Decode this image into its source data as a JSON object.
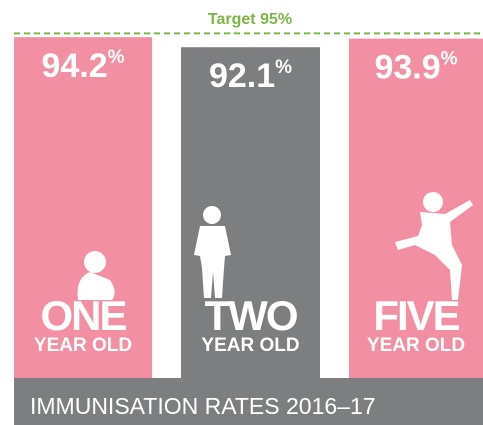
{
  "chart_data": {
    "type": "bar",
    "title": "IMMUNISATION RATES 2016–17",
    "categories": [
      "ONE",
      "TWO",
      "FIVE"
    ],
    "category_subtitles": [
      "YEAR OLD",
      "YEAR OLD",
      "YEAR OLD"
    ],
    "values": [
      94.2,
      92.1,
      93.9
    ],
    "unit": "%",
    "colors": [
      "#f28fa2",
      "#7d7e80",
      "#f28fa2"
    ],
    "ylim": [
      22.6,
      100
    ],
    "target": {
      "value": 95,
      "label": "Target 95%",
      "color": "#7ab648"
    }
  }
}
